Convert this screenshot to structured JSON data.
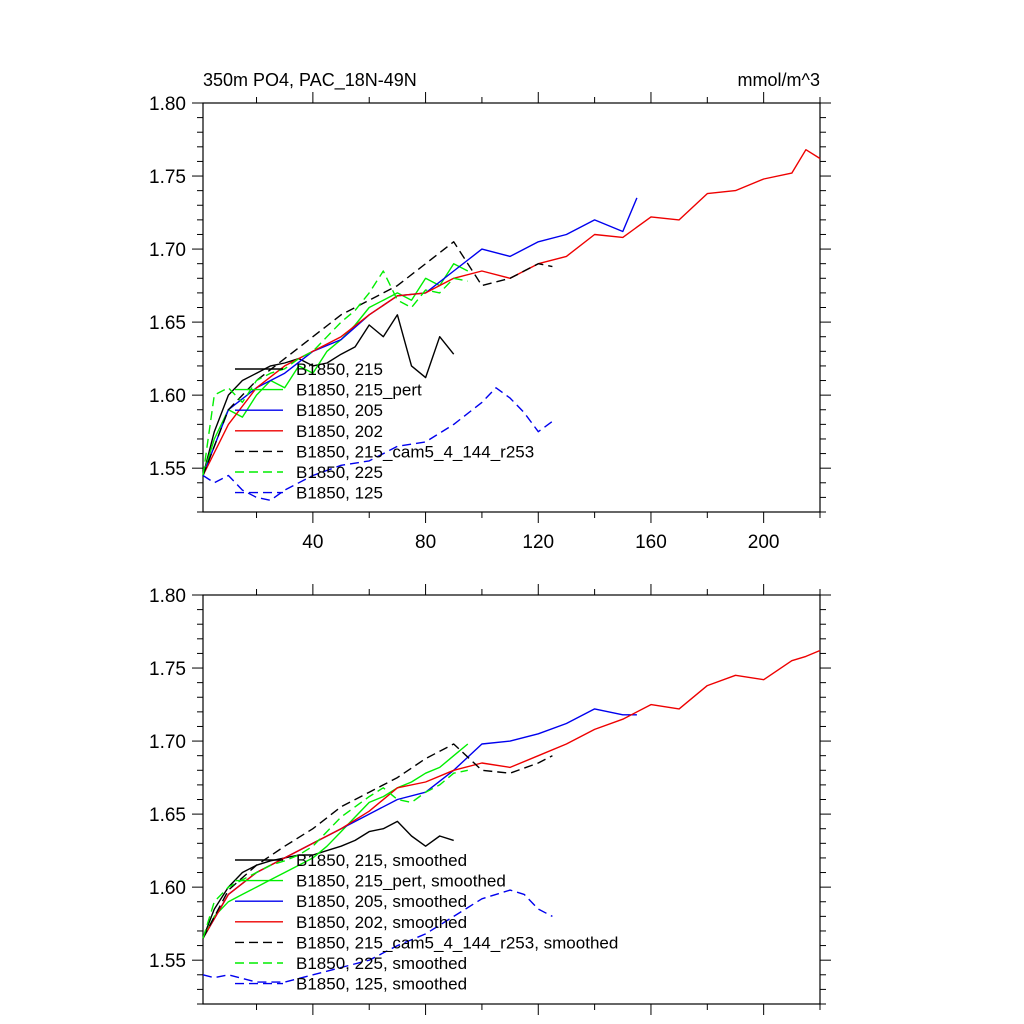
{
  "chart_data": [
    {
      "type": "line",
      "title": "350m PO4, PAC_18N-49N",
      "units": "mmol/m^3",
      "xlabel": "",
      "ylabel": "",
      "xlim": [
        1,
        220
      ],
      "ylim": [
        1.52,
        1.8
      ],
      "xticks": [
        40,
        80,
        120,
        160,
        200
      ],
      "yticks": [
        "1.80",
        "1.75",
        "1.70",
        "1.65",
        "1.60",
        "1.55"
      ],
      "legend_position": "lower-left",
      "series": [
        {
          "name": "B1850, 215",
          "color": "#000000",
          "dash": "solid",
          "x": [
            1,
            5,
            10,
            15,
            20,
            25,
            30,
            35,
            40,
            45,
            50,
            55,
            60,
            65,
            70,
            75,
            80,
            85,
            90
          ],
          "y": [
            1.545,
            1.575,
            1.6,
            1.61,
            1.615,
            1.62,
            1.622,
            1.625,
            1.62,
            1.622,
            1.628,
            1.633,
            1.648,
            1.64,
            1.655,
            1.62,
            1.612,
            1.64,
            1.628
          ]
        },
        {
          "name": "B1850, 215_pert",
          "color": "#00ee00",
          "dash": "solid",
          "x": [
            1,
            5,
            10,
            15,
            20,
            25,
            30,
            35,
            40,
            45,
            50,
            55,
            60,
            65,
            70,
            75,
            80,
            85,
            90,
            95
          ],
          "y": [
            1.545,
            1.57,
            1.59,
            1.585,
            1.6,
            1.61,
            1.605,
            1.62,
            1.615,
            1.63,
            1.638,
            1.648,
            1.66,
            1.665,
            1.67,
            1.665,
            1.68,
            1.675,
            1.69,
            1.685
          ]
        },
        {
          "name": "B1850, 205",
          "color": "#0000ee",
          "dash": "solid",
          "x": [
            1,
            10,
            20,
            30,
            40,
            50,
            60,
            70,
            80,
            90,
            100,
            110,
            120,
            130,
            140,
            150,
            155
          ],
          "y": [
            1.545,
            1.59,
            1.605,
            1.615,
            1.63,
            1.638,
            1.655,
            1.668,
            1.67,
            1.685,
            1.7,
            1.695,
            1.705,
            1.71,
            1.72,
            1.712,
            1.735
          ]
        },
        {
          "name": "B1850, 202",
          "color": "#ee0000",
          "dash": "solid",
          "x": [
            1,
            10,
            20,
            30,
            40,
            50,
            60,
            70,
            80,
            90,
            100,
            110,
            120,
            130,
            140,
            150,
            160,
            170,
            180,
            190,
            200,
            210,
            215,
            220
          ],
          "y": [
            1.545,
            1.58,
            1.605,
            1.62,
            1.63,
            1.64,
            1.655,
            1.668,
            1.67,
            1.68,
            1.685,
            1.68,
            1.69,
            1.695,
            1.71,
            1.708,
            1.722,
            1.72,
            1.738,
            1.74,
            1.748,
            1.752,
            1.768,
            1.762
          ]
        },
        {
          "name": "B1850, 215_cam5_4_144_r253",
          "color": "#000000",
          "dash": "dashed",
          "x": [
            1,
            10,
            20,
            30,
            40,
            50,
            60,
            70,
            80,
            90,
            95,
            100,
            110,
            120,
            125
          ],
          "y": [
            1.545,
            1.59,
            1.61,
            1.625,
            1.64,
            1.655,
            1.665,
            1.675,
            1.69,
            1.705,
            1.69,
            1.675,
            1.68,
            1.69,
            1.688
          ]
        },
        {
          "name": "B1850, 225",
          "color": "#00ee00",
          "dash": "dashed",
          "x": [
            1,
            5,
            10,
            15,
            20,
            25,
            30,
            35,
            40,
            45,
            50,
            55,
            60,
            65,
            70,
            75,
            80,
            85,
            90,
            95
          ],
          "y": [
            1.545,
            1.6,
            1.605,
            1.595,
            1.61,
            1.615,
            1.618,
            1.625,
            1.63,
            1.64,
            1.65,
            1.658,
            1.67,
            1.685,
            1.665,
            1.66,
            1.672,
            1.67,
            1.68,
            1.678
          ]
        },
        {
          "name": "B1850, 125",
          "color": "#0000ee",
          "dash": "dashed",
          "x": [
            1,
            5,
            10,
            15,
            20,
            25,
            30,
            40,
            50,
            60,
            70,
            80,
            90,
            100,
            105,
            110,
            115,
            120,
            125
          ],
          "y": [
            1.545,
            1.54,
            1.545,
            1.535,
            1.53,
            1.528,
            1.535,
            1.545,
            1.552,
            1.555,
            1.565,
            1.568,
            1.58,
            1.595,
            1.605,
            1.598,
            1.588,
            1.575,
            1.582
          ]
        }
      ]
    },
    {
      "type": "line",
      "title": "",
      "xlabel": "",
      "ylabel": "",
      "xlim": [
        1,
        220
      ],
      "ylim": [
        1.52,
        1.8
      ],
      "yticks": [
        "1.80",
        "1.75",
        "1.70",
        "1.65",
        "1.60",
        "1.55"
      ],
      "legend_position": "lower-left",
      "series": [
        {
          "name": "B1850, 215, smoothed",
          "color": "#000000",
          "dash": "solid",
          "x": [
            1,
            5,
            10,
            15,
            20,
            25,
            30,
            35,
            40,
            45,
            50,
            55,
            60,
            65,
            70,
            75,
            80,
            85,
            90
          ],
          "y": [
            1.565,
            1.585,
            1.6,
            1.61,
            1.615,
            1.618,
            1.62,
            1.622,
            1.622,
            1.625,
            1.628,
            1.632,
            1.638,
            1.64,
            1.645,
            1.635,
            1.628,
            1.635,
            1.632
          ]
        },
        {
          "name": "B1850, 215_pert, smoothed",
          "color": "#00ee00",
          "dash": "solid",
          "x": [
            1,
            5,
            10,
            15,
            20,
            25,
            30,
            35,
            40,
            45,
            50,
            55,
            60,
            65,
            70,
            75,
            80,
            85,
            90,
            95
          ],
          "y": [
            1.565,
            1.58,
            1.59,
            1.595,
            1.6,
            1.605,
            1.61,
            1.615,
            1.62,
            1.628,
            1.638,
            1.648,
            1.658,
            1.662,
            1.668,
            1.672,
            1.678,
            1.682,
            1.69,
            1.698
          ]
        },
        {
          "name": "B1850, 205, smoothed",
          "color": "#0000ee",
          "dash": "solid",
          "x": [
            1,
            10,
            20,
            30,
            40,
            50,
            60,
            70,
            80,
            90,
            100,
            110,
            120,
            130,
            140,
            150,
            155
          ],
          "y": [
            1.565,
            1.595,
            1.61,
            1.62,
            1.63,
            1.64,
            1.65,
            1.66,
            1.665,
            1.68,
            1.698,
            1.7,
            1.705,
            1.712,
            1.722,
            1.718,
            1.718
          ]
        },
        {
          "name": "B1850, 202, smoothed",
          "color": "#ee0000",
          "dash": "solid",
          "x": [
            1,
            10,
            20,
            30,
            40,
            50,
            60,
            70,
            80,
            90,
            100,
            110,
            120,
            130,
            140,
            150,
            160,
            170,
            180,
            190,
            200,
            210,
            215,
            220
          ],
          "y": [
            1.565,
            1.595,
            1.61,
            1.62,
            1.63,
            1.64,
            1.652,
            1.668,
            1.672,
            1.68,
            1.685,
            1.682,
            1.69,
            1.698,
            1.708,
            1.715,
            1.725,
            1.722,
            1.738,
            1.745,
            1.742,
            1.755,
            1.758,
            1.762
          ]
        },
        {
          "name": "B1850, 215_cam5_4_144_r253, smoothed",
          "color": "#000000",
          "dash": "dashed",
          "x": [
            1,
            10,
            20,
            30,
            40,
            50,
            60,
            70,
            80,
            90,
            100,
            110,
            120,
            125
          ],
          "y": [
            1.565,
            1.598,
            1.615,
            1.628,
            1.64,
            1.655,
            1.665,
            1.675,
            1.688,
            1.698,
            1.68,
            1.678,
            1.685,
            1.69
          ]
        },
        {
          "name": "B1850, 225, smoothed",
          "color": "#00ee00",
          "dash": "dashed",
          "x": [
            1,
            5,
            10,
            15,
            20,
            25,
            30,
            35,
            40,
            45,
            50,
            55,
            60,
            65,
            70,
            75,
            80,
            85,
            90,
            95
          ],
          "y": [
            1.565,
            1.59,
            1.6,
            1.605,
            1.61,
            1.615,
            1.618,
            1.622,
            1.628,
            1.638,
            1.648,
            1.655,
            1.662,
            1.668,
            1.66,
            1.658,
            1.665,
            1.67,
            1.678,
            1.68
          ]
        },
        {
          "name": "B1850, 125, smoothed",
          "color": "#0000ee",
          "dash": "dashed",
          "x": [
            1,
            5,
            10,
            20,
            30,
            40,
            50,
            60,
            70,
            80,
            90,
            100,
            110,
            115,
            120,
            125
          ],
          "y": [
            1.54,
            1.538,
            1.54,
            1.535,
            1.535,
            1.54,
            1.545,
            1.55,
            1.56,
            1.568,
            1.58,
            1.592,
            1.598,
            1.595,
            1.585,
            1.58
          ]
        }
      ]
    }
  ]
}
